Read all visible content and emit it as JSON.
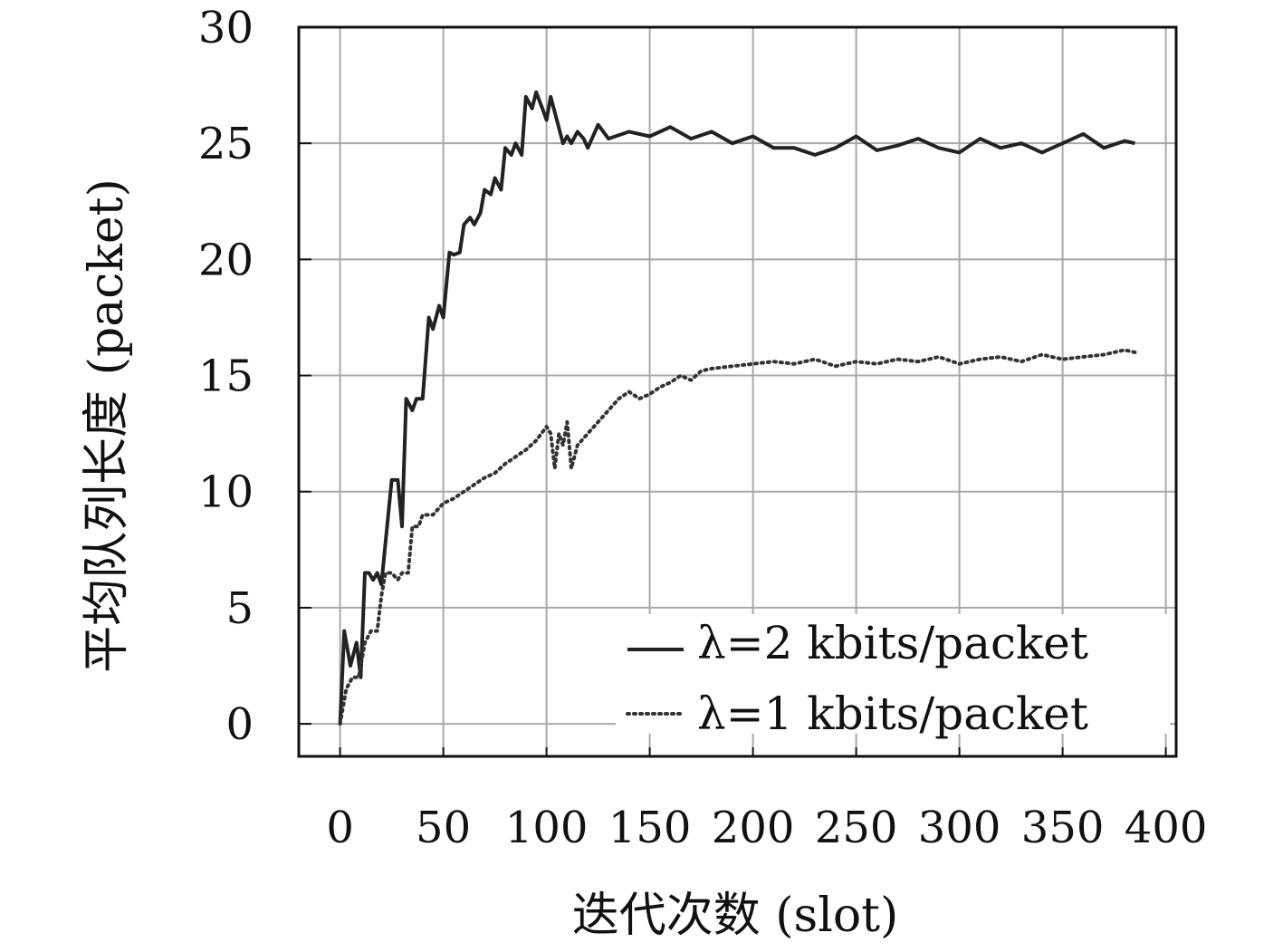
{
  "chart_data": {
    "type": "line",
    "title": "",
    "xlabel": "迭代次数 (slot)",
    "ylabel": "平均队列长度 (packet)",
    "xlim": [
      -20,
      405
    ],
    "ylim": [
      -1.4,
      30
    ],
    "xticks": [
      0,
      50,
      100,
      150,
      200,
      250,
      300,
      350,
      400
    ],
    "yticks": [
      0,
      5,
      10,
      15,
      20,
      25,
      30
    ],
    "grid": true,
    "legend_position": "bottom-right",
    "series": [
      {
        "name": "λ=2 kbits/packet",
        "style": "solid",
        "color": "#222222",
        "x": [
          0,
          2,
          5,
          8,
          10,
          12,
          14,
          16,
          18,
          20,
          25,
          28,
          30,
          32,
          35,
          37,
          40,
          43,
          45,
          48,
          50,
          53,
          55,
          58,
          60,
          63,
          65,
          68,
          70,
          73,
          75,
          78,
          80,
          83,
          85,
          88,
          90,
          93,
          95,
          98,
          100,
          102,
          105,
          108,
          110,
          112,
          115,
          118,
          120,
          125,
          130,
          140,
          150,
          160,
          170,
          180,
          190,
          200,
          210,
          220,
          230,
          240,
          250,
          260,
          270,
          280,
          290,
          300,
          310,
          320,
          330,
          340,
          350,
          360,
          370,
          380,
          385
        ],
        "y": [
          0,
          4,
          2.5,
          3.5,
          2,
          6.5,
          6.5,
          6.2,
          6.5,
          6,
          10.5,
          10.5,
          8.5,
          14,
          13.5,
          14,
          14,
          17.5,
          17,
          18,
          17.5,
          20.3,
          20.2,
          20.3,
          21.5,
          21.8,
          21.5,
          22,
          23,
          22.8,
          23.5,
          23,
          24.8,
          24.5,
          25,
          24.5,
          27,
          26.5,
          27.2,
          26.5,
          26,
          27,
          26,
          25,
          25.3,
          25,
          25.5,
          25.2,
          24.8,
          25.8,
          25.2,
          25.5,
          25.3,
          25.7,
          25.2,
          25.5,
          25,
          25.3,
          24.8,
          24.8,
          24.5,
          24.8,
          25.3,
          24.7,
          24.9,
          25.2,
          24.8,
          24.6,
          25.2,
          24.8,
          25,
          24.6,
          25,
          25.4,
          24.8,
          25.1,
          25
        ]
      },
      {
        "name": "λ=1 kbits/packet",
        "style": "dotted",
        "color": "#333333",
        "x": [
          0,
          3,
          6,
          9,
          12,
          15,
          18,
          20,
          22,
          25,
          28,
          30,
          33,
          35,
          38,
          40,
          45,
          50,
          55,
          60,
          65,
          70,
          75,
          80,
          85,
          90,
          95,
          100,
          102,
          104,
          106,
          108,
          110,
          112,
          115,
          120,
          125,
          130,
          135,
          140,
          145,
          150,
          155,
          160,
          165,
          170,
          175,
          180,
          190,
          200,
          210,
          220,
          230,
          240,
          250,
          260,
          270,
          280,
          290,
          300,
          310,
          320,
          330,
          340,
          350,
          360,
          370,
          380,
          385
        ],
        "y": [
          0,
          1.5,
          2,
          2,
          3.5,
          4,
          4,
          5.5,
          6.5,
          6.5,
          6.2,
          6.5,
          6.5,
          8.5,
          8.5,
          9,
          9,
          9.5,
          9.7,
          10,
          10.3,
          10.6,
          10.8,
          11.2,
          11.5,
          11.8,
          12.2,
          12.8,
          12.5,
          11,
          12.5,
          12,
          13,
          11,
          12,
          12.5,
          13,
          13.5,
          14,
          14.3,
          14,
          14.2,
          14.5,
          14.7,
          15,
          14.8,
          15.2,
          15.3,
          15.4,
          15.5,
          15.6,
          15.5,
          15.7,
          15.4,
          15.6,
          15.5,
          15.7,
          15.6,
          15.8,
          15.5,
          15.7,
          15.8,
          15.6,
          15.9,
          15.7,
          15.8,
          15.9,
          16.1,
          16
        ]
      }
    ]
  }
}
